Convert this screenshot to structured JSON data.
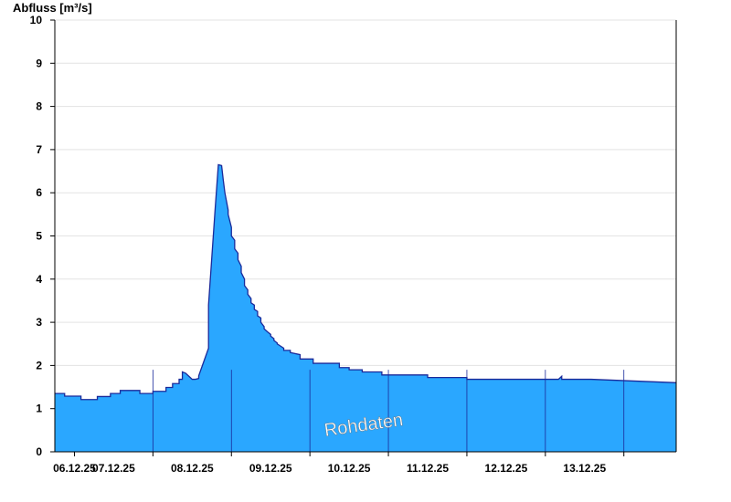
{
  "chart_data": {
    "type": "area",
    "ylabel": "Abfluss [m³/s]",
    "ylim": [
      0,
      10
    ],
    "yticks": [
      "0",
      "1",
      "2",
      "3",
      "4",
      "5",
      "6",
      "7",
      "8",
      "9",
      "10"
    ],
    "xlim_days": [
      "05.12.25 18:00",
      "13.12.25 24:00"
    ],
    "xticks": [
      "06.12.25",
      "07.12.25",
      "08.12.25",
      "09.12.25",
      "10.12.25",
      "11.12.25",
      "12.12.25",
      "13.12.25"
    ],
    "grid": "horizontal",
    "annotation": "Rohdaten",
    "colors": {
      "fill": "#2aa7ff",
      "line": "#1a2a9a",
      "grid": "#e3e3e3"
    },
    "series": [
      {
        "x_hours_from_0512_18h": [
          0,
          3,
          3,
          8,
          8,
          13,
          13,
          17,
          17,
          20,
          20,
          26,
          26,
          30,
          30,
          34,
          34,
          36,
          36,
          38,
          38,
          39,
          39,
          40,
          41,
          42,
          42,
          43,
          44,
          44,
          47,
          47,
          48,
          49,
          50,
          51,
          51.5,
          52,
          53,
          53,
          54,
          54,
          55,
          55,
          56,
          56,
          57,
          57,
          58,
          58,
          59,
          59,
          60,
          60,
          61,
          61,
          62,
          62,
          63,
          63,
          64,
          64,
          65,
          66,
          66,
          67,
          67,
          68,
          68,
          69,
          69,
          70,
          70,
          72,
          72,
          75,
          75,
          79,
          79,
          87,
          87,
          90,
          90,
          94,
          94,
          100,
          100,
          114,
          114,
          126,
          126,
          140,
          140,
          148,
          148,
          152,
          152,
          154,
          155,
          155,
          164,
          164,
          190
        ],
        "values": [
          1.35,
          1.35,
          1.29,
          1.29,
          1.21,
          1.21,
          1.28,
          1.28,
          1.35,
          1.35,
          1.42,
          1.42,
          1.35,
          1.35,
          1.4,
          1.4,
          1.49,
          1.49,
          1.58,
          1.58,
          1.68,
          1.68,
          1.85,
          1.82,
          1.75,
          1.68,
          1.68,
          1.68,
          1.7,
          1.76,
          2.4,
          3.4,
          4.5,
          5.6,
          6.65,
          6.63,
          6.3,
          6.0,
          5.6,
          5.5,
          5.2,
          5.0,
          4.9,
          4.7,
          4.6,
          4.45,
          4.3,
          4.15,
          4.0,
          3.85,
          3.75,
          3.65,
          3.55,
          3.45,
          3.4,
          3.3,
          3.25,
          3.15,
          3.1,
          3.0,
          2.9,
          2.85,
          2.78,
          2.72,
          2.68,
          2.62,
          2.58,
          2.52,
          2.5,
          2.45,
          2.45,
          2.4,
          2.35,
          2.35,
          2.3,
          2.25,
          2.15,
          2.15,
          2.05,
          2.05,
          1.95,
          1.95,
          1.9,
          1.9,
          1.85,
          1.85,
          1.78,
          1.78,
          1.72,
          1.72,
          1.68,
          1.68,
          1.68,
          1.68,
          1.68,
          1.68,
          1.68,
          1.68,
          1.75,
          1.68,
          1.68,
          1.68,
          1.6,
          1.6
        ]
      }
    ]
  }
}
